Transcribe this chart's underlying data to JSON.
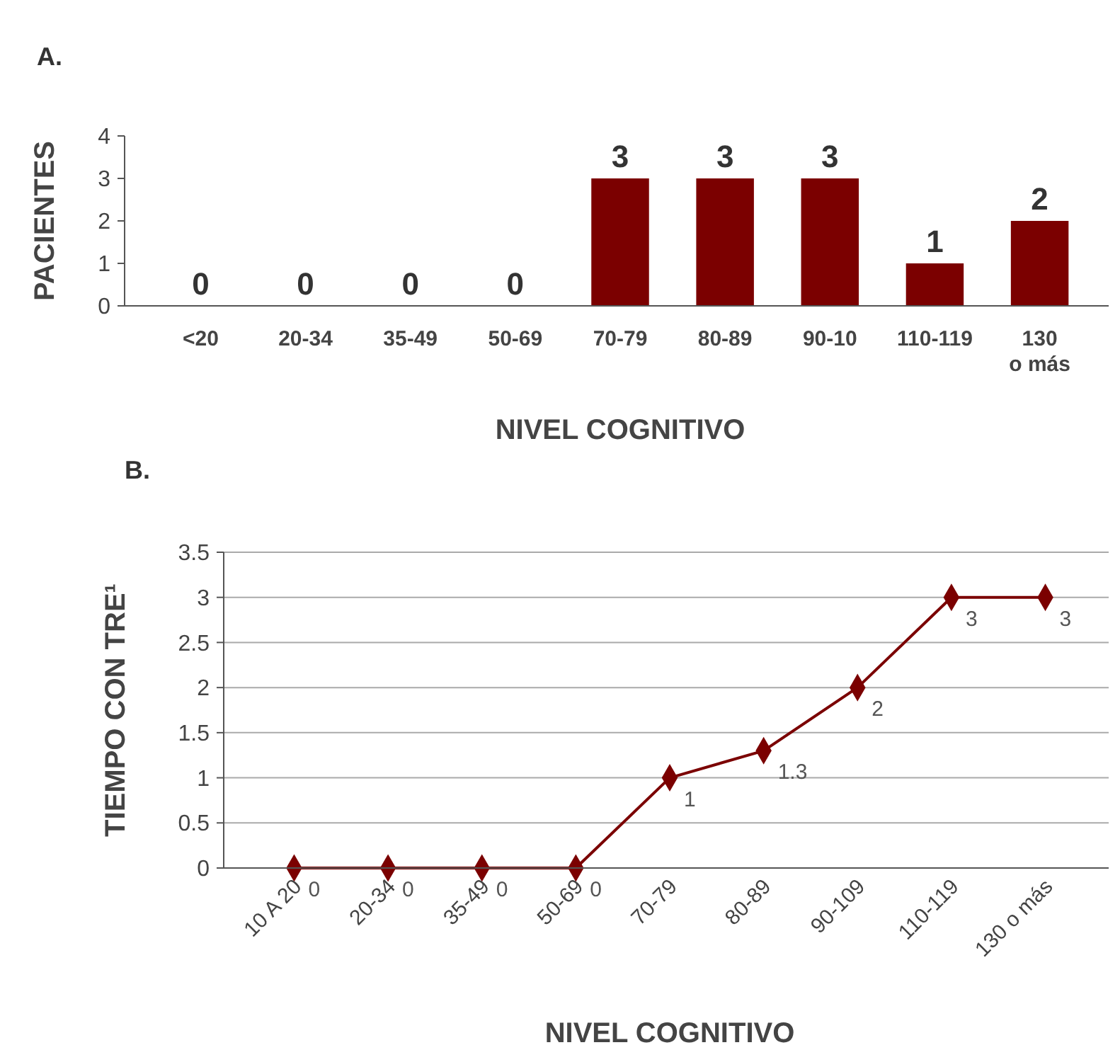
{
  "chart_data": [
    {
      "type": "bar",
      "title": "A.",
      "xlabel": "NIVEL COGNITIVO",
      "ylabel": "PACIENTES",
      "categories": [
        "<20",
        "20-34",
        "35-49",
        "50-69",
        "70-79",
        "80-89",
        "90-10",
        "110-119",
        "130 o más"
      ],
      "values": [
        0,
        0,
        0,
        0,
        3,
        3,
        3,
        1,
        2
      ],
      "color": "#7b0000",
      "ylim": [
        0,
        4
      ],
      "yticks": [
        0,
        1,
        2,
        3,
        4
      ],
      "data_labels": true,
      "grid": false
    },
    {
      "type": "line",
      "title": "B.",
      "xlabel": "NIVEL COGNITIVO",
      "ylabel": "TIEMPO CON TRE¹",
      "categories": [
        "10 A 20",
        "20-34",
        "35-49",
        "50-69",
        "70-79",
        "80-89",
        "90-109",
        "110-119",
        "130 o más"
      ],
      "values": [
        0,
        0,
        0,
        0,
        1,
        1.3,
        2,
        3,
        3
      ],
      "color": "#7b0000",
      "ylim": [
        0,
        3.5
      ],
      "yticks": [
        0,
        0.5,
        1,
        1.5,
        2,
        2.5,
        3,
        3.5
      ],
      "data_labels": true,
      "grid": "y",
      "marker": "diamond"
    }
  ]
}
